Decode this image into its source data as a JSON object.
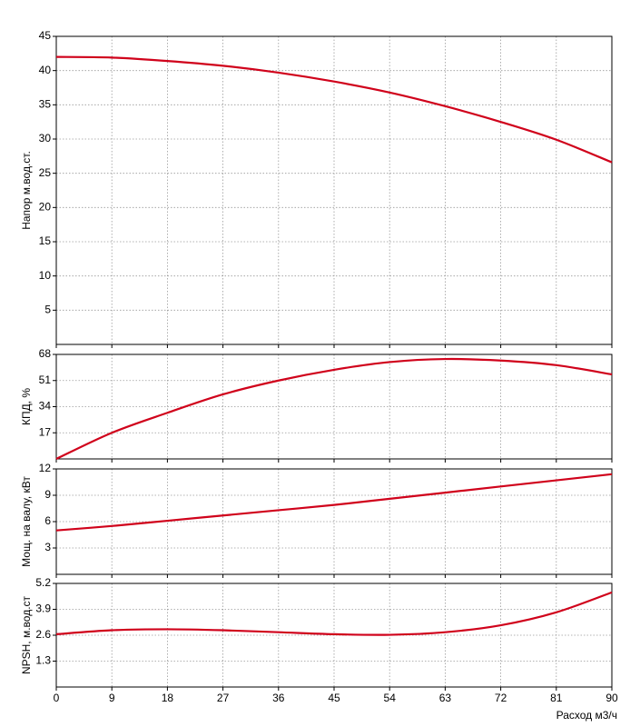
{
  "chart_data": [
    {
      "type": "line",
      "y_label": "Напор м.вод.ст.",
      "x": [
        0,
        9,
        18,
        27,
        36,
        45,
        54,
        63,
        72,
        81,
        90
      ],
      "series": [
        {
          "color": "#d0021b",
          "values": [
            42,
            41.9,
            41.4,
            40.7,
            39.7,
            38.4,
            36.8,
            34.8,
            32.5,
            29.9,
            26.6
          ]
        }
      ],
      "xlim": [
        0,
        90
      ],
      "xticks": [
        0,
        9,
        18,
        27,
        36,
        45,
        54,
        63,
        72,
        81,
        90
      ],
      "ylim": [
        0,
        45
      ],
      "yticks": [
        5,
        10,
        15,
        20,
        25,
        30,
        35,
        40,
        45
      ],
      "grid": true
    },
    {
      "type": "line",
      "y_label": "КПД, %",
      "x": [
        0,
        9,
        18,
        27,
        36,
        45,
        54,
        63,
        72,
        81,
        90
      ],
      "series": [
        {
          "color": "#d0021b",
          "values": [
            0,
            17,
            30,
            42,
            51,
            58,
            63,
            65,
            64,
            61,
            55
          ]
        }
      ],
      "xlim": [
        0,
        90
      ],
      "xticks": [
        0,
        9,
        18,
        27,
        36,
        45,
        54,
        63,
        72,
        81,
        90
      ],
      "ylim": [
        0,
        68
      ],
      "yticks": [
        17,
        34,
        51,
        68
      ],
      "grid": true
    },
    {
      "type": "line",
      "y_label": "Мощ. на валу, кВт",
      "x": [
        0,
        9,
        18,
        27,
        36,
        45,
        54,
        63,
        72,
        81,
        90
      ],
      "series": [
        {
          "color": "#d0021b",
          "values": [
            5.0,
            5.5,
            6.1,
            6.7,
            7.3,
            7.9,
            8.6,
            9.3,
            10.0,
            10.7,
            11.4
          ]
        }
      ],
      "xlim": [
        0,
        90
      ],
      "xticks": [
        0,
        9,
        18,
        27,
        36,
        45,
        54,
        63,
        72,
        81,
        90
      ],
      "ylim": [
        0,
        12
      ],
      "yticks": [
        3,
        6,
        9,
        12
      ],
      "grid": true
    },
    {
      "type": "line",
      "y_label": "NPSH, м.вод.ст",
      "x_label": "Расход м3/ч",
      "x": [
        0,
        9,
        18,
        27,
        36,
        45,
        54,
        63,
        72,
        81,
        90
      ],
      "series": [
        {
          "color": "#d0021b",
          "values": [
            2.65,
            2.85,
            2.9,
            2.85,
            2.75,
            2.65,
            2.62,
            2.75,
            3.1,
            3.75,
            4.75
          ]
        }
      ],
      "xlim": [
        0,
        90
      ],
      "xticks": [
        0,
        9,
        18,
        27,
        36,
        45,
        54,
        63,
        72,
        81,
        90
      ],
      "ylim": [
        0,
        5.2
      ],
      "yticks": [
        1.3,
        2.6,
        3.9,
        5.2
      ],
      "grid": true
    }
  ]
}
